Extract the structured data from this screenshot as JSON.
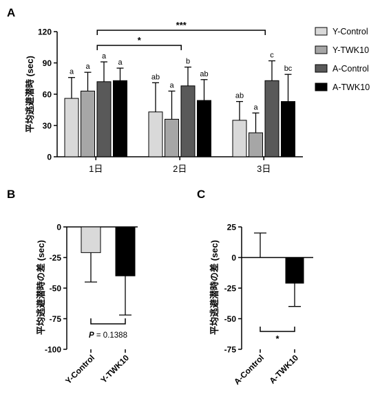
{
  "chart_data": [
    {
      "panel": "A",
      "type": "bar",
      "ylabel": "平均逃避潜時 (sec)",
      "ylim": [
        0,
        120
      ],
      "yticks": [
        0,
        30,
        60,
        90,
        120
      ],
      "categories": [
        "1日",
        "2日",
        "3日"
      ],
      "legend_position": "right",
      "series": [
        {
          "name": "Y-Control",
          "color": "#d9d9d9",
          "values": [
            56,
            43,
            35
          ],
          "errors": [
            20,
            28,
            18
          ],
          "letters": [
            "a",
            "ab",
            "ab"
          ]
        },
        {
          "name": "Y-TWK10",
          "color": "#a6a6a6",
          "values": [
            63,
            36,
            23
          ],
          "errors": [
            18,
            27,
            19
          ],
          "letters": [
            "a",
            "a",
            "a"
          ]
        },
        {
          "name": "A-Control",
          "color": "#595959",
          "values": [
            72,
            68,
            73
          ],
          "errors": [
            19,
            18,
            19
          ],
          "letters": [
            "a",
            "b",
            "c"
          ]
        },
        {
          "name": "A-TWK10",
          "color": "#000000",
          "values": [
            73,
            54,
            53
          ],
          "errors": [
            12,
            20,
            26
          ],
          "letters": [
            "a",
            "ab",
            "bc"
          ]
        }
      ],
      "comparisons": [
        {
          "label": "*",
          "from": "1日",
          "to": "2日"
        },
        {
          "label": "***",
          "from": "1日",
          "to": "3日"
        }
      ]
    },
    {
      "panel": "B",
      "type": "bar",
      "ylabel": "平均逃避潜時の差 (sec)",
      "ylim": [
        -100,
        0
      ],
      "yticks": [
        0,
        -25,
        -50,
        -75,
        -100
      ],
      "categories": [
        "Y-Control",
        "Y-TWK10"
      ],
      "values": [
        -21,
        -40
      ],
      "errors": [
        24,
        32
      ],
      "colors": [
        "#d9d9d9",
        "#000000"
      ],
      "comparison": {
        "label_prefix": "P",
        "label_rest": " = 0.1388"
      }
    },
    {
      "panel": "C",
      "type": "bar",
      "ylabel": "平均逃避潜時の差 (sec)",
      "ylim": [
        -75,
        25
      ],
      "yticks": [
        25,
        0,
        -25,
        -50,
        -75
      ],
      "categories": [
        "A-Control",
        "A-TWK10"
      ],
      "values": [
        0,
        -21
      ],
      "errors": [
        20,
        19
      ],
      "colors": [
        "#ffffff",
        "#000000"
      ],
      "comparison": {
        "label": "*"
      }
    }
  ]
}
